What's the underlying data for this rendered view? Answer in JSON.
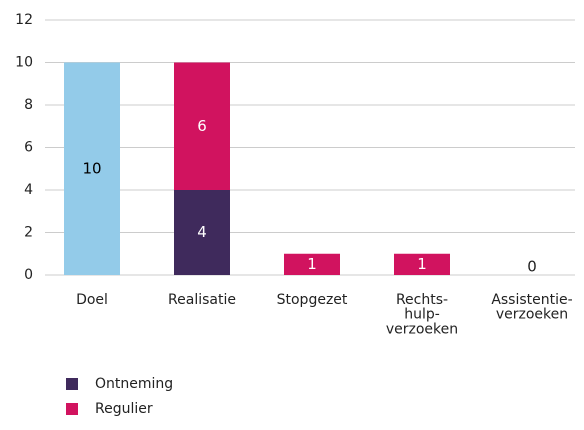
{
  "chart_data": {
    "type": "stacked_bar",
    "categories": [
      "Doel",
      "Realisatie",
      "Stopgezet",
      "Rechts-\nhulp-\nverzoeken",
      "Assistentie-\nverzoeken"
    ],
    "series": [
      {
        "color": "#93cbe9",
        "label_color": "#000000",
        "values": [
          10,
          null,
          null,
          null,
          null
        ]
      },
      {
        "name": "Ontneming",
        "color": "#3f2a5c",
        "label_color": "#ffffff",
        "values": [
          null,
          4,
          null,
          null,
          null
        ]
      },
      {
        "name": "Regulier",
        "color": "#d1135f",
        "label_color": "#ffffff",
        "values": [
          null,
          6,
          1,
          1,
          0
        ]
      }
    ],
    "ylim": [
      0,
      12
    ],
    "yticks": [
      0,
      2,
      4,
      6,
      8,
      10,
      12
    ],
    "grid": true
  }
}
